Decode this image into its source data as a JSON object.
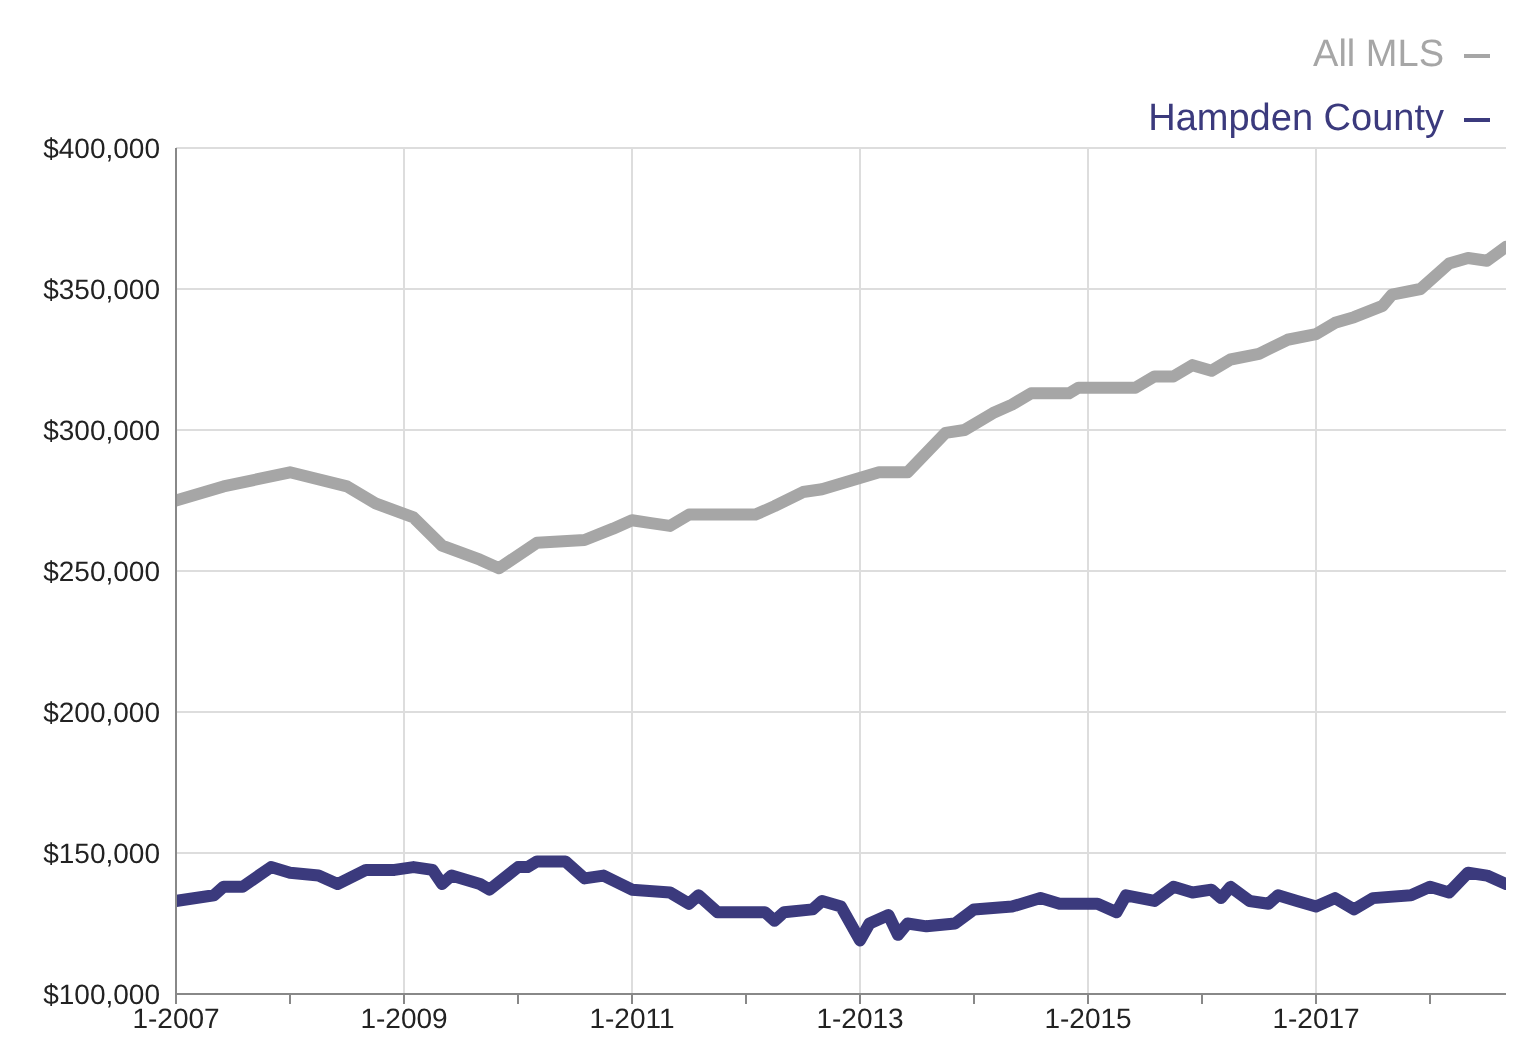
{
  "chart_data": {
    "type": "line",
    "legend": "top right",
    "grid": true,
    "marker": "none",
    "line_style": "solid",
    "xlim": [
      "2007-01",
      "2018-09"
    ],
    "xticks": [
      {
        "value": "2007-01",
        "label": "1-2007"
      },
      {
        "value": "2008-01",
        "label": null
      },
      {
        "value": "2009-01",
        "label": "1-2009"
      },
      {
        "value": "2010-01",
        "label": null
      },
      {
        "value": "2011-01",
        "label": "1-2011"
      },
      {
        "value": "2012-01",
        "label": null
      },
      {
        "value": "2013-01",
        "label": "1-2013"
      },
      {
        "value": "2014-01",
        "label": null
      },
      {
        "value": "2015-01",
        "label": "1-2015"
      },
      {
        "value": "2016-01",
        "label": null
      },
      {
        "value": "2017-01",
        "label": "1-2017"
      },
      {
        "value": "2018-01",
        "label": null
      }
    ],
    "ylim": [
      100000,
      400000
    ],
    "yticks": [
      {
        "value": 100000,
        "label": "$100,000"
      },
      {
        "value": 150000,
        "label": "$150,000"
      },
      {
        "value": 200000,
        "label": "$200,000"
      },
      {
        "value": 250000,
        "label": "$250,000"
      },
      {
        "value": 300000,
        "label": "$300,000"
      },
      {
        "value": 350000,
        "label": "$350,000"
      },
      {
        "value": 400000,
        "label": "$400,000"
      }
    ],
    "series": [
      {
        "name": "All MLS",
        "color": "#a6a6a6",
        "x": [
          "2007-01",
          "2007-06",
          "2008-01",
          "2008-07",
          "2008-10",
          "2009-02",
          "2009-05",
          "2009-09",
          "2009-11",
          "2010-03",
          "2010-08",
          "2010-11",
          "2011-01",
          "2011-03",
          "2011-05",
          "2011-07",
          "2012-02",
          "2012-04",
          "2012-07",
          "2012-09",
          "2012-12",
          "2013-03",
          "2013-06",
          "2013-10",
          "2013-12",
          "2014-03",
          "2014-05",
          "2014-07",
          "2014-11",
          "2014-12",
          "2015-06",
          "2015-08",
          "2015-10",
          "2015-12",
          "2016-02",
          "2016-04",
          "2016-07",
          "2016-10",
          "2017-01",
          "2017-03",
          "2017-05",
          "2017-08",
          "2017-09",
          "2017-12",
          "2018-03",
          "2018-05",
          "2018-07",
          "2018-09"
        ],
        "values": [
          275000,
          280000,
          285000,
          280000,
          274000,
          269000,
          259000,
          254000,
          251000,
          260000,
          261000,
          265000,
          268000,
          267000,
          266000,
          270000,
          270000,
          273000,
          278000,
          279000,
          282000,
          285000,
          285000,
          299000,
          300000,
          306000,
          309000,
          313000,
          313000,
          315000,
          315000,
          319000,
          319000,
          323000,
          321000,
          325000,
          327000,
          332000,
          334000,
          338000,
          340000,
          344000,
          348000,
          350000,
          359000,
          361000,
          360000,
          365000
        ]
      },
      {
        "name": "Hampden County",
        "color": "#3b3a7d",
        "x": [
          "2007-01",
          "2007-05",
          "2007-06",
          "2007-08",
          "2007-11",
          "2008-01",
          "2008-04",
          "2008-06",
          "2008-09",
          "2008-12",
          "2009-02",
          "2009-04",
          "2009-05",
          "2009-06",
          "2009-09",
          "2009-10",
          "2010-01",
          "2010-02",
          "2010-03",
          "2010-06",
          "2010-08",
          "2010-10",
          "2011-01",
          "2011-05",
          "2011-07",
          "2011-08",
          "2011-10",
          "2012-03",
          "2012-04",
          "2012-05",
          "2012-08",
          "2012-09",
          "2012-11",
          "2013-01",
          "2013-02",
          "2013-04",
          "2013-05",
          "2013-06",
          "2013-08",
          "2013-11",
          "2014-01",
          "2014-05",
          "2014-08",
          "2014-10",
          "2015-02",
          "2015-04",
          "2015-05",
          "2015-08",
          "2015-10",
          "2015-12",
          "2016-02",
          "2016-03",
          "2016-04",
          "2016-06",
          "2016-08",
          "2016-09",
          "2016-11",
          "2017-01",
          "2017-03",
          "2017-05",
          "2017-07",
          "2017-11",
          "2018-01",
          "2018-03",
          "2018-05",
          "2018-07",
          "2018-09"
        ],
        "values": [
          133000,
          135000,
          138000,
          138000,
          145000,
          143000,
          142000,
          139000,
          144000,
          144000,
          145000,
          144000,
          139000,
          142000,
          139000,
          137000,
          145000,
          145000,
          147000,
          147000,
          141000,
          142000,
          137000,
          136000,
          132000,
          135000,
          129000,
          129000,
          126000,
          129000,
          130000,
          133000,
          131000,
          119000,
          125000,
          128000,
          121000,
          125000,
          124000,
          125000,
          130000,
          131000,
          134000,
          132000,
          132000,
          129000,
          135000,
          133000,
          138000,
          136000,
          137000,
          134000,
          138000,
          133000,
          132000,
          135000,
          133000,
          131000,
          134000,
          130000,
          134000,
          135000,
          138000,
          136000,
          143000,
          142000,
          139000
        ]
      }
    ]
  }
}
